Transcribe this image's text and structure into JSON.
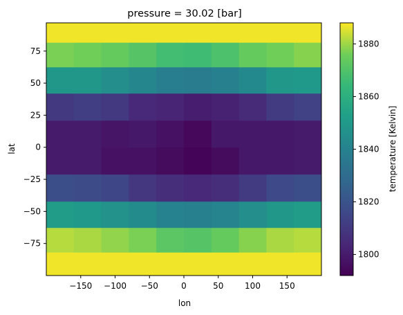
{
  "chart_data": {
    "type": "heatmap",
    "title": "pressure = 30.02 [bar]",
    "xlabel": "lon",
    "ylabel": "lat",
    "colorbar_label": "temperature [Kelvin]",
    "colormap": "viridis",
    "color_range": [
      1792,
      1888
    ],
    "xlim": [
      -200,
      200
    ],
    "ylim": [
      -100,
      97
    ],
    "x_ticks": [
      -150,
      -100,
      -50,
      0,
      50,
      100,
      150
    ],
    "x_tick_labels": [
      "−150",
      "−100",
      "−50",
      "0",
      "50",
      "100",
      "150"
    ],
    "y_ticks": [
      -75,
      -50,
      -25,
      0,
      25,
      50,
      75
    ],
    "y_tick_labels": [
      "−75",
      "−50",
      "−25",
      "0",
      "25",
      "50",
      "75"
    ],
    "colorbar_ticks": [
      1800,
      1820,
      1840,
      1860,
      1880
    ],
    "colorbar_tick_labels": [
      "1800",
      "1820",
      "1840",
      "1860",
      "1880"
    ],
    "lon_edges": [
      -200,
      -160,
      -120,
      -80,
      -40,
      0,
      40,
      80,
      120,
      160,
      200
    ],
    "lat_edges": [
      -100,
      -81.8,
      -62.6,
      -42.1,
      -21,
      0,
      21,
      42.1,
      62.6,
      81.8,
      97
    ],
    "values": [
      [
        1887,
        1887,
        1887,
        1887,
        1887,
        1887,
        1887,
        1887,
        1887,
        1887
      ],
      [
        1882,
        1881,
        1879,
        1877,
        1872,
        1871,
        1874,
        1878,
        1881,
        1882
      ],
      [
        1851,
        1850,
        1847,
        1844,
        1840,
        1839,
        1841,
        1845,
        1849,
        1851
      ],
      [
        1818,
        1817,
        1815,
        1809,
        1806,
        1804,
        1806,
        1811,
        1816,
        1818
      ],
      [
        1800,
        1800,
        1797,
        1797,
        1795,
        1793,
        1795,
        1799,
        1799,
        1800
      ],
      [
        1800,
        1800,
        1798,
        1799,
        1797,
        1794,
        1799,
        1799,
        1799,
        1800
      ],
      [
        1810,
        1812,
        1810,
        1804,
        1803,
        1801,
        1802,
        1805,
        1811,
        1813
      ],
      [
        1849,
        1849,
        1845,
        1842,
        1838,
        1837,
        1839,
        1843,
        1849,
        1850
      ],
      [
        1877,
        1876,
        1874,
        1871,
        1867,
        1866,
        1869,
        1874,
        1876,
        1878
      ],
      [
        1887,
        1887,
        1887,
        1887,
        1887,
        1887,
        1887,
        1887,
        1887,
        1887
      ]
    ]
  }
}
